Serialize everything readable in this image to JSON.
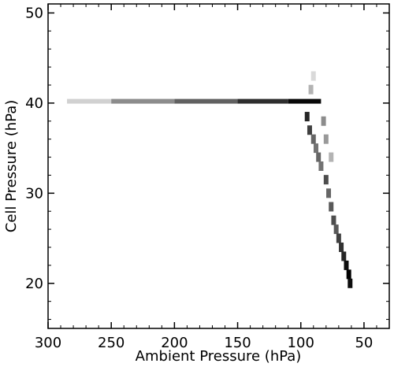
{
  "chart_data": {
    "type": "heatmap",
    "title": "",
    "xlabel": "Ambient Pressure (hPa)",
    "ylabel": "Cell Pressure (hPa)",
    "xlim": [
      300,
      30
    ],
    "ylim": [
      15,
      51
    ],
    "x_inverted": true,
    "grid": false,
    "x_ticks": [
      300,
      250,
      200,
      150,
      100,
      50
    ],
    "x_tick_labels": [
      "300",
      "250",
      "200",
      "150",
      "100",
      "50"
    ],
    "y_ticks": [
      20,
      30,
      40,
      50
    ],
    "y_tick_labels": [
      "20",
      "30",
      "40",
      "50"
    ],
    "colormap": "white-to-black",
    "density_segments": [
      {
        "x_from": 285,
        "x_to": 250,
        "y": 40.2,
        "intensity": 0.18
      },
      {
        "x_from": 250,
        "x_to": 200,
        "y": 40.2,
        "intensity": 0.45
      },
      {
        "x_from": 200,
        "x_to": 150,
        "y": 40.2,
        "intensity": 0.62
      },
      {
        "x_from": 150,
        "x_to": 110,
        "y": 40.2,
        "intensity": 0.82
      },
      {
        "x_from": 110,
        "x_to": 84,
        "y": 40.2,
        "intensity": 0.97
      }
    ],
    "density_points": [
      {
        "x": 95,
        "y": 38.5,
        "intensity": 0.85
      },
      {
        "x": 93,
        "y": 37.0,
        "intensity": 0.75
      },
      {
        "x": 90,
        "y": 36.0,
        "intensity": 0.6
      },
      {
        "x": 92,
        "y": 41.5,
        "intensity": 0.3
      },
      {
        "x": 90,
        "y": 43.0,
        "intensity": 0.15
      },
      {
        "x": 88,
        "y": 35.0,
        "intensity": 0.55
      },
      {
        "x": 86,
        "y": 34.0,
        "intensity": 0.6
      },
      {
        "x": 84,
        "y": 33.0,
        "intensity": 0.55
      },
      {
        "x": 82,
        "y": 38.0,
        "intensity": 0.45
      },
      {
        "x": 80,
        "y": 36.0,
        "intensity": 0.4
      },
      {
        "x": 80,
        "y": 31.5,
        "intensity": 0.7
      },
      {
        "x": 78,
        "y": 30.0,
        "intensity": 0.6
      },
      {
        "x": 76,
        "y": 34.0,
        "intensity": 0.3
      },
      {
        "x": 76,
        "y": 28.5,
        "intensity": 0.65
      },
      {
        "x": 74,
        "y": 27.0,
        "intensity": 0.7
      },
      {
        "x": 72,
        "y": 26.0,
        "intensity": 0.65
      },
      {
        "x": 70,
        "y": 25.0,
        "intensity": 0.75
      },
      {
        "x": 68,
        "y": 24.0,
        "intensity": 0.8
      },
      {
        "x": 66,
        "y": 23.0,
        "intensity": 0.85
      },
      {
        "x": 64,
        "y": 22.0,
        "intensity": 0.95
      },
      {
        "x": 62,
        "y": 21.0,
        "intensity": 1.0
      },
      {
        "x": 61,
        "y": 20.0,
        "intensity": 0.95
      }
    ]
  }
}
